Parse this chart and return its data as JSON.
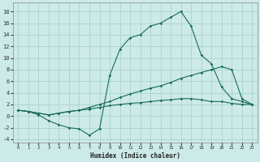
{
  "xlabel": "Humidex (Indice chaleur)",
  "bg_color": "#cceae8",
  "grid_color": "#aad4d0",
  "line_color": "#1a6b5a",
  "xlim": [
    -0.5,
    23.5
  ],
  "ylim": [
    -4.5,
    19.5
  ],
  "xticks": [
    0,
    1,
    2,
    3,
    4,
    5,
    6,
    7,
    8,
    9,
    10,
    11,
    12,
    13,
    14,
    15,
    16,
    17,
    18,
    19,
    20,
    21,
    22,
    23
  ],
  "yticks": [
    -4,
    -2,
    0,
    2,
    4,
    6,
    8,
    10,
    12,
    14,
    16,
    18
  ],
  "line1_x": [
    0,
    1,
    2,
    3,
    4,
    5,
    6,
    7,
    8,
    9,
    10,
    11,
    12,
    13,
    14,
    15,
    16,
    17,
    18,
    19,
    20,
    21,
    22,
    23
  ],
  "line1_y": [
    1.0,
    0.8,
    0.2,
    -0.8,
    -1.5,
    -2.0,
    -2.2,
    -3.3,
    -2.2,
    7.0,
    11.5,
    13.5,
    14.0,
    15.5,
    16.0,
    17.0,
    18.0,
    15.5,
    10.5,
    9.0,
    5.0,
    3.0,
    2.5,
    2.0
  ],
  "line2_x": [
    0,
    1,
    2,
    3,
    4,
    5,
    6,
    7,
    8,
    9,
    10,
    11,
    12,
    13,
    14,
    15,
    16,
    17,
    18,
    19,
    20,
    21,
    22,
    23
  ],
  "line2_y": [
    1.0,
    0.8,
    0.5,
    0.2,
    0.5,
    0.8,
    1.0,
    1.5,
    2.0,
    2.5,
    3.2,
    3.8,
    4.3,
    4.8,
    5.2,
    5.8,
    6.5,
    7.0,
    7.5,
    8.0,
    8.5,
    8.0,
    3.0,
    2.0
  ],
  "line3_x": [
    0,
    1,
    2,
    3,
    4,
    5,
    6,
    7,
    8,
    9,
    10,
    11,
    12,
    13,
    14,
    15,
    16,
    17,
    18,
    19,
    20,
    21,
    22,
    23
  ],
  "line3_y": [
    1.0,
    0.8,
    0.5,
    0.2,
    0.5,
    0.8,
    1.0,
    1.2,
    1.5,
    1.8,
    2.0,
    2.2,
    2.3,
    2.5,
    2.7,
    2.8,
    3.0,
    3.0,
    2.8,
    2.5,
    2.5,
    2.2,
    2.0,
    2.0
  ]
}
